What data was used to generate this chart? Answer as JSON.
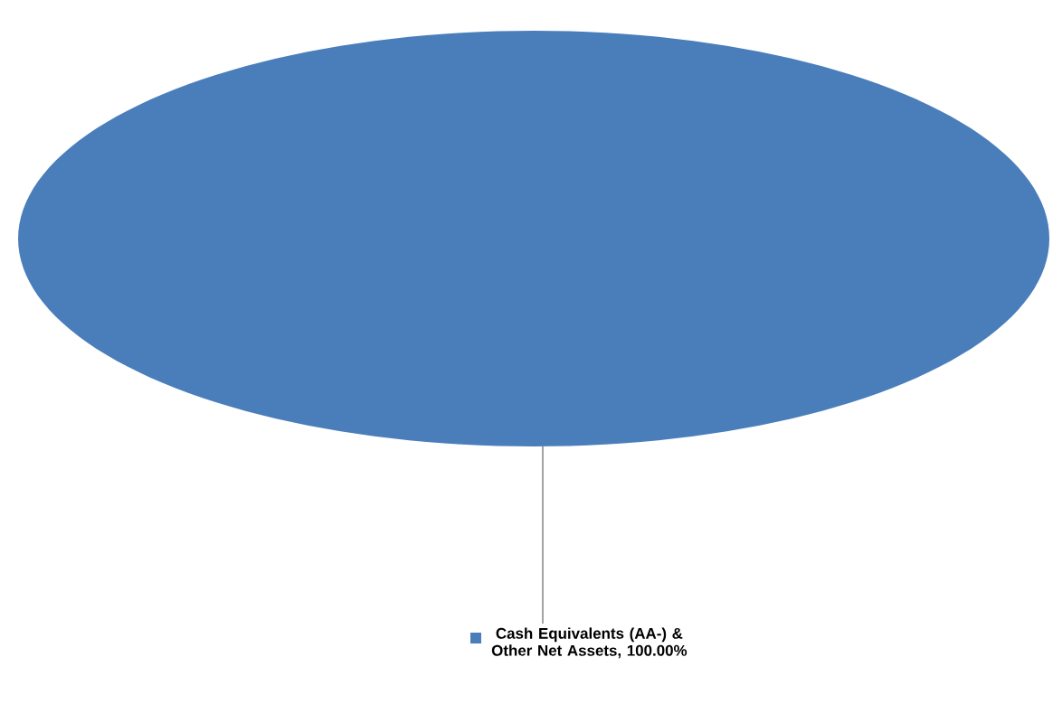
{
  "chart_data": {
    "type": "pie",
    "categories": [
      "Cash Equivalents (AA-) & Other Net Assets, 100.00%"
    ],
    "values": [
      100
    ],
    "colors": [
      "#4a7ebb"
    ]
  }
}
